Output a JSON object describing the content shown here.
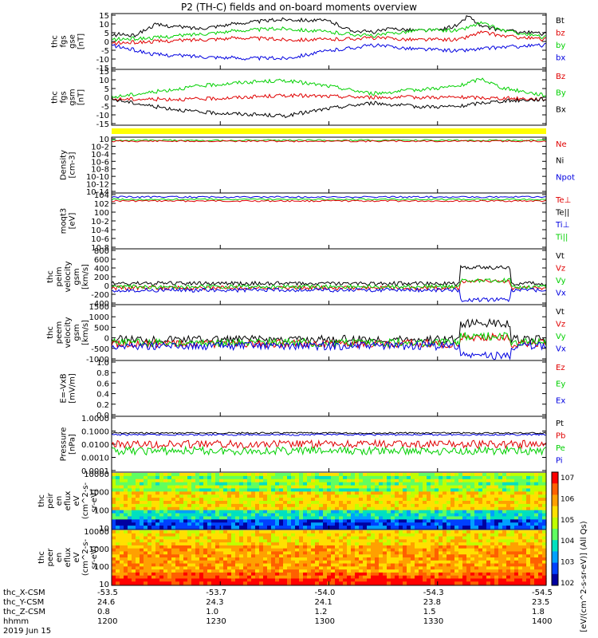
{
  "title": "P2 (TH-C) fields and on-board moments overview",
  "colors": {
    "black": "#000000",
    "red": "#e00000",
    "green": "#00d000",
    "blue": "#0000e0",
    "yellow": "#ffff00"
  },
  "chart_data": [
    {
      "id": "fgs-gse",
      "type": "line",
      "ylabel": [
        "thc",
        "fgs",
        "gse",
        "[nT]"
      ],
      "yticks": [
        "15",
        "10",
        "5",
        "0",
        "-5",
        "-10",
        "-15"
      ],
      "ylim": [
        -15,
        15
      ],
      "legend": [
        {
          "name": "Bt",
          "color": "black"
        },
        {
          "name": "bz",
          "color": "red"
        },
        {
          "name": "by",
          "color": "green"
        },
        {
          "name": "bx",
          "color": "blue"
        }
      ],
      "series": [
        {
          "name": "Bt",
          "color": "black",
          "x": [
            0,
            2,
            5,
            10,
            20,
            30,
            40,
            50,
            55,
            60,
            65,
            70,
            75,
            80,
            82,
            85,
            90,
            95,
            100
          ],
          "y": [
            3,
            4,
            3,
            9,
            7,
            10,
            12,
            11,
            6,
            5,
            7,
            6,
            6,
            9,
            14,
            8,
            6,
            5,
            4
          ]
        },
        {
          "name": "bz",
          "color": "red",
          "x": [
            0,
            10,
            20,
            30,
            40,
            50,
            60,
            70,
            80,
            85,
            90,
            100
          ],
          "y": [
            -1,
            0,
            1,
            2,
            1,
            1,
            2,
            1,
            1,
            5,
            3,
            1
          ]
        },
        {
          "name": "by",
          "color": "green",
          "x": [
            0,
            10,
            20,
            30,
            40,
            50,
            60,
            70,
            80,
            85,
            90,
            100
          ],
          "y": [
            1,
            2,
            4,
            6,
            7,
            5,
            3,
            6,
            6,
            10,
            6,
            2
          ]
        },
        {
          "name": "bx",
          "color": "blue",
          "x": [
            0,
            10,
            20,
            30,
            40,
            50,
            60,
            70,
            80,
            85,
            90,
            100
          ],
          "y": [
            -2,
            -7,
            -8,
            -9,
            -9,
            -5,
            -2,
            -4,
            -5,
            -4,
            -3,
            -2
          ]
        }
      ]
    },
    {
      "id": "fgs-gsm",
      "type": "line",
      "ylabel": [
        "thc",
        "fgs",
        "gsm",
        "[nT]"
      ],
      "yticks": [
        "15",
        "10",
        "5",
        "0",
        "-5",
        "-10",
        "-15"
      ],
      "ylim": [
        -15,
        15
      ],
      "legend": [
        {
          "name": "Bz",
          "color": "red"
        },
        {
          "name": "By",
          "color": "green"
        },
        {
          "name": "Bx",
          "color": "black"
        }
      ],
      "series": [
        {
          "name": "Bz",
          "color": "red",
          "x": [
            0,
            20,
            40,
            60,
            80,
            100
          ],
          "y": [
            -1,
            -1,
            1,
            0,
            0,
            -1
          ]
        },
        {
          "name": "By",
          "color": "green",
          "x": [
            0,
            10,
            20,
            30,
            40,
            50,
            60,
            70,
            80,
            85,
            90,
            100
          ],
          "y": [
            0,
            3,
            6,
            8,
            9,
            6,
            2,
            4,
            6,
            10,
            5,
            1
          ]
        },
        {
          "name": "Bx",
          "color": "black",
          "x": [
            0,
            10,
            20,
            30,
            40,
            50,
            60,
            70,
            80,
            85,
            90,
            100
          ],
          "y": [
            -1,
            -5,
            -8,
            -9,
            -10,
            -6,
            -3,
            -5,
            -5,
            -3,
            -2,
            -1
          ]
        }
      ]
    },
    {
      "id": "density",
      "type": "line",
      "ylabel": [
        "Density",
        "[cm-3]"
      ],
      "log": true,
      "yticks": [
        "10",
        "10-2",
        "10-4",
        "10-6",
        "10-8",
        "10-10",
        "10-12",
        "10-14"
      ],
      "legend": [
        {
          "name": "Ne",
          "color": "red"
        },
        {
          "name": "Ni",
          "color": "black"
        },
        {
          "name": "Npot",
          "color": "blue"
        }
      ]
    },
    {
      "id": "temperature",
      "type": "line",
      "ylabel": [
        "moqt3",
        "[eV]"
      ],
      "log": true,
      "yticks": [
        "104",
        "102",
        "100",
        "10-2",
        "10-4",
        "10-6",
        "10-8"
      ],
      "legend": [
        {
          "name": "Te⊥",
          "color": "red"
        },
        {
          "name": "Te||",
          "color": "black"
        },
        {
          "name": "Ti⊥",
          "color": "blue"
        },
        {
          "name": "Ti||",
          "color": "green"
        }
      ]
    },
    {
      "id": "peim-velocity",
      "type": "line",
      "ylabel": [
        "thc",
        "peim",
        "velocity",
        "gsm",
        "[km/s]"
      ],
      "yticks": [
        "800",
        "600",
        "400",
        "200",
        "0",
        "-200",
        "-400"
      ],
      "ylim": [
        -400,
        800
      ],
      "legend": [
        {
          "name": "Vt",
          "color": "black"
        },
        {
          "name": "Vz",
          "color": "red"
        },
        {
          "name": "Vy",
          "color": "green"
        },
        {
          "name": "Vx",
          "color": "blue"
        }
      ]
    },
    {
      "id": "peem-velocity",
      "type": "line",
      "ylabel": [
        "thc",
        "peem",
        "velocity",
        "gsm",
        "[km/s]"
      ],
      "yticks": [
        "1500",
        "1000",
        "500",
        "0",
        "-500",
        "-1000"
      ],
      "ylim": [
        -1000,
        1500
      ],
      "legend": [
        {
          "name": "Vt",
          "color": "black"
        },
        {
          "name": "Vz",
          "color": "red"
        },
        {
          "name": "Vy",
          "color": "green"
        },
        {
          "name": "Vx",
          "color": "blue"
        }
      ]
    },
    {
      "id": "efield",
      "type": "line",
      "ylabel": [
        "E=-VxB",
        "[mV/m]"
      ],
      "yticks": [
        "1.0",
        "0.8",
        "0.6",
        "0.4",
        "0.2",
        "0.0"
      ],
      "ylim": [
        0,
        1
      ],
      "legend": [
        {
          "name": "Ez",
          "color": "red"
        },
        {
          "name": "Ey",
          "color": "green"
        },
        {
          "name": "Ex",
          "color": "blue"
        }
      ]
    },
    {
      "id": "pressure",
      "type": "line",
      "ylabel": [
        "Pressure",
        "[nPa]"
      ],
      "log": true,
      "yticks": [
        "1.0000",
        "0.1000",
        "0.0100",
        "0.0010",
        "0.0001"
      ],
      "legend": [
        {
          "name": "Pt",
          "color": "black"
        },
        {
          "name": "Pb",
          "color": "red"
        },
        {
          "name": "Pe",
          "color": "green"
        },
        {
          "name": "Pi",
          "color": "blue"
        }
      ]
    },
    {
      "id": "peir-spectrogram",
      "type": "heatmap",
      "ylabel": [
        "thc",
        "peir",
        "en",
        "eflux",
        "eV",
        "(cm^2-s-",
        "sr-eV)"
      ],
      "yticks": [
        "10000",
        "1000",
        "100",
        "10"
      ]
    },
    {
      "id": "peer-spectrogram",
      "type": "heatmap",
      "ylabel": [
        "thc",
        "peer",
        "en",
        "eflux",
        "eV",
        "(cm^2-s-",
        "sr-eV)"
      ],
      "yticks": [
        "10000",
        "1000",
        "100",
        "10"
      ],
      "colorbar": {
        "ticks": [
          "107",
          "106",
          "105",
          "104",
          "103",
          "102"
        ],
        "label": "[eV/(cm^2-s-sr-eV)] (All Qs)"
      }
    }
  ],
  "xaxis": {
    "rows": [
      {
        "label": "thc_X-CSM",
        "values": [
          "-53.5",
          "-53.7",
          "-54.0",
          "-54.3",
          "-54.5"
        ]
      },
      {
        "label": "thc_Y-CSM",
        "values": [
          "24.6",
          "24.3",
          "24.1",
          "23.8",
          "23.5"
        ]
      },
      {
        "label": "thc_Z-CSM",
        "values": [
          "0.8",
          "1.0",
          "1.2",
          "1.5",
          "1.8"
        ]
      },
      {
        "label": "hhmm",
        "values": [
          "1200",
          "1230",
          "1300",
          "1330",
          "1400"
        ]
      }
    ],
    "date": "2019 Jun 15"
  }
}
